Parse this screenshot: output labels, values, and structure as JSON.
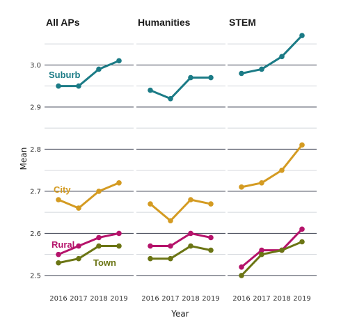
{
  "chart_data": {
    "type": "line",
    "facets": [
      "All APs",
      "Humanities",
      "STEM"
    ],
    "xlabel": "Year",
    "ylabel": "Mean",
    "x": [
      "2016",
      "2017",
      "2018",
      "2019"
    ],
    "y_ticks": [
      "2.5",
      "2.6",
      "2.7",
      "2.8",
      "2.9",
      "3.0"
    ],
    "ylim": [
      2.48,
      3.08
    ],
    "grid": "horizontal",
    "colors": {
      "Suburb": "#1b7b86",
      "City": "#d49b22",
      "Rural": "#b5136b",
      "Town": "#6b7514"
    },
    "series": [
      {
        "name": "Suburb",
        "values": {
          "All APs": [
            2.95,
            2.95,
            2.99,
            3.01
          ],
          "Humanities": [
            2.94,
            2.92,
            2.97,
            2.97
          ],
          "STEM": [
            2.98,
            2.99,
            3.02,
            3.07
          ]
        }
      },
      {
        "name": "City",
        "values": {
          "All APs": [
            2.68,
            2.66,
            2.7,
            2.72
          ],
          "Humanities": [
            2.67,
            2.63,
            2.68,
            2.67
          ],
          "STEM": [
            2.71,
            2.72,
            2.75,
            2.81
          ]
        }
      },
      {
        "name": "Rural",
        "values": {
          "All APs": [
            2.55,
            2.57,
            2.59,
            2.6
          ],
          "Humanities": [
            2.57,
            2.57,
            2.6,
            2.59
          ],
          "STEM": [
            2.52,
            2.56,
            2.56,
            2.61
          ]
        }
      },
      {
        "name": "Town",
        "values": {
          "All APs": [
            2.53,
            2.54,
            2.57,
            2.57
          ],
          "Humanities": [
            2.54,
            2.54,
            2.57,
            2.56
          ],
          "STEM": [
            2.5,
            2.55,
            2.56,
            2.58
          ]
        }
      }
    ],
    "series_labels": [
      {
        "name": "Suburb",
        "facet": "All APs"
      },
      {
        "name": "City",
        "facet": "All APs"
      },
      {
        "name": "Rural",
        "facet": "All APs"
      },
      {
        "name": "Town",
        "facet": "All APs"
      }
    ]
  }
}
